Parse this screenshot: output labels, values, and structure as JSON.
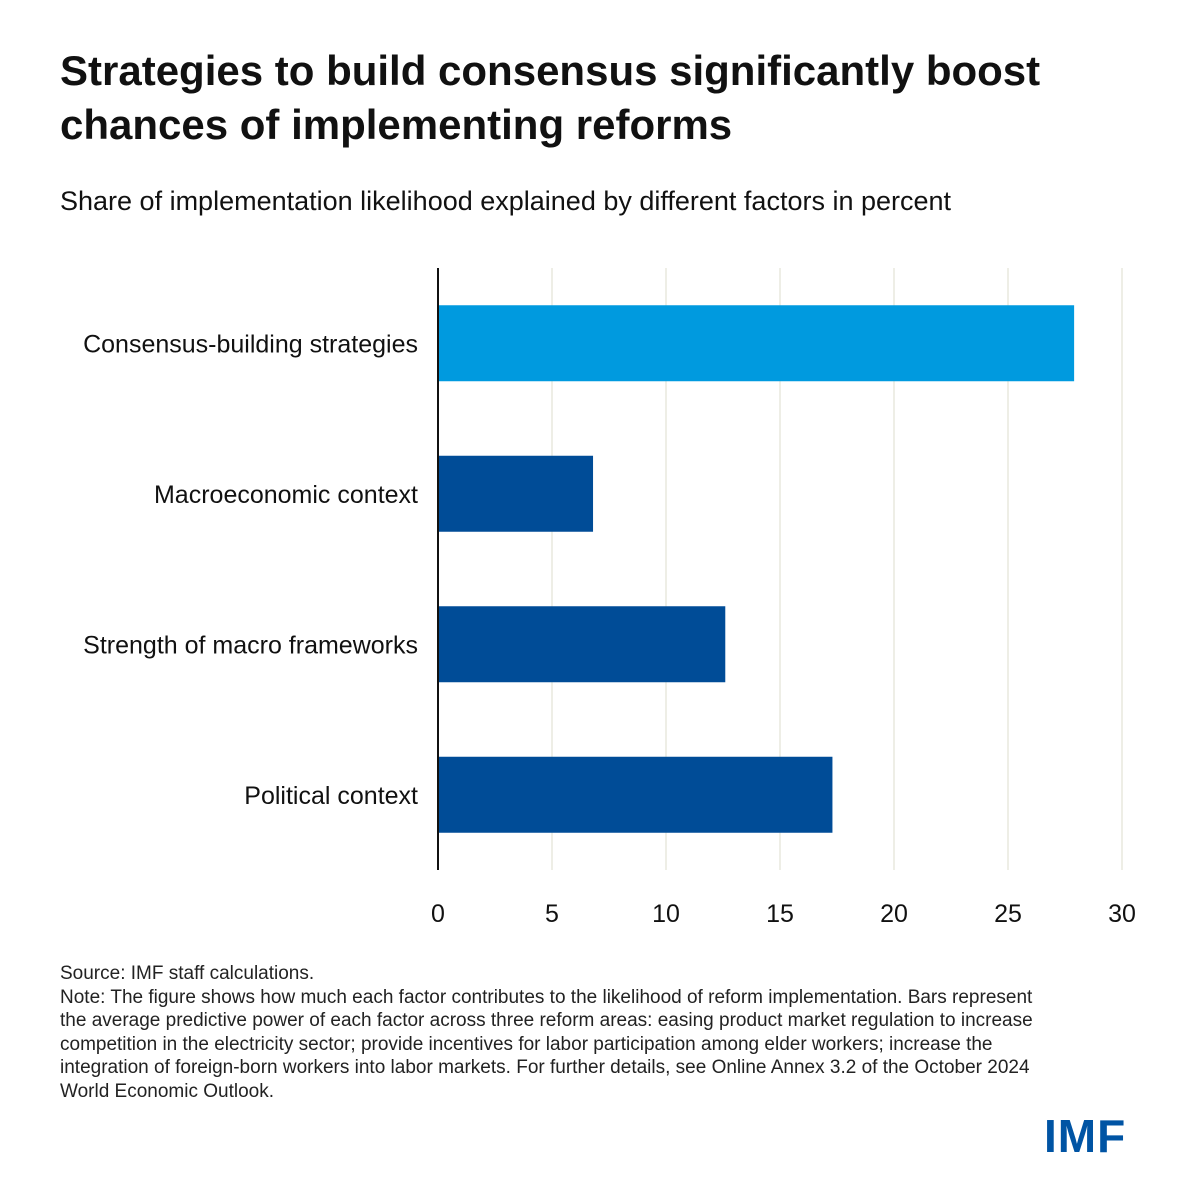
{
  "title": "Strategies to build consensus significantly boost chances of implementing reforms",
  "subtitle": "Share of implementation likelihood explained by different factors in percent",
  "source": "Source: IMF staff calculations.",
  "note": "Note: The figure shows how much each factor contributes to the likelihood of reform implementation. Bars represent the average predictive power of each factor across three reform areas: easing product market regulation to increase competition in the electricity sector; provide incentives for labor participation among elder workers; increase the integration of foreign-born workers into labor markets. For further details, see Online Annex 3.2 of the October 2024 World Economic Outlook.",
  "logo_text": "IMF",
  "colors": {
    "highlight": "#009ADF",
    "bar": "#004C97",
    "grid": "#EEEEE6",
    "axis": "#111111",
    "logo": "#0054A4"
  },
  "chart_data": {
    "type": "bar",
    "orientation": "horizontal",
    "categories": [
      "Consensus-building strategies",
      "Macroeconomic context",
      "Strength of macro frameworks",
      "Political context"
    ],
    "values": [
      27.9,
      6.8,
      12.6,
      17.3
    ],
    "highlight_index": 0,
    "title": "",
    "xlabel": "",
    "ylabel": "",
    "xlim": [
      0,
      30
    ],
    "ticks": [
      0,
      5,
      10,
      15,
      20,
      25,
      30
    ],
    "tick_labels": [
      "0",
      "5",
      "10",
      "15",
      "20",
      "25",
      "30"
    ],
    "grid": true,
    "legend": "none"
  }
}
